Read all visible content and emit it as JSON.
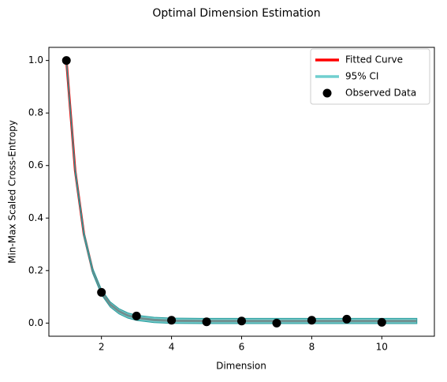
{
  "chart_data": {
    "type": "line",
    "title": "Optimal Dimension Estimation",
    "x_label": "Dimension",
    "y_label": "Min-Max Scaled Cross-Entropy",
    "xlim": [
      0.5,
      11.5
    ],
    "ylim": [
      -0.05,
      1.05
    ],
    "xticks": [
      2,
      4,
      6,
      8,
      10
    ],
    "yticks": [
      {
        "value": 0,
        "label": "0.0"
      },
      0.2,
      0.4,
      0.6,
      0.8,
      {
        "value": 1,
        "label": "1.0"
      }
    ],
    "legend": "upper right",
    "series": [
      {
        "name": "Fitted Curve",
        "color": "#ff0000",
        "x": [
          1,
          1.25,
          1.5,
          1.75,
          2,
          2.25,
          2.5,
          2.75,
          3,
          3.5,
          4,
          5,
          6,
          7,
          8,
          9,
          10,
          11
        ],
        "values": [
          1.0,
          0.58,
          0.338,
          0.199,
          0.118,
          0.071,
          0.045,
          0.029,
          0.02,
          0.012,
          0.009,
          0.008,
          0.008,
          0.008,
          0.008,
          0.008,
          0.008,
          0.008
        ]
      },
      {
        "name": "95% CI",
        "color": "#40bfbf",
        "x": [
          1,
          1.25,
          1.5,
          1.75,
          2,
          2.25,
          2.5,
          2.75,
          3,
          3.5,
          4,
          5,
          6,
          7,
          8,
          9,
          10,
          11
        ],
        "lower": [
          0.99,
          0.57,
          0.328,
          0.189,
          0.108,
          0.061,
          0.035,
          0.019,
          0.01,
          0.002,
          -0.001,
          -0.002,
          -0.002,
          -0.002,
          -0.002,
          -0.002,
          -0.002,
          -0.002
        ],
        "upper": [
          1.01,
          0.59,
          0.348,
          0.209,
          0.128,
          0.081,
          0.055,
          0.039,
          0.03,
          0.022,
          0.019,
          0.018,
          0.018,
          0.018,
          0.018,
          0.018,
          0.018,
          0.018
        ]
      },
      {
        "name": "Observed Data",
        "color": "#000000",
        "x": [
          1,
          2,
          3,
          4,
          5,
          6,
          7,
          8,
          9,
          10
        ],
        "values": [
          1.0,
          0.117,
          0.027,
          0.011,
          0.005,
          0.008,
          0.0,
          0.011,
          0.015,
          0.003
        ]
      }
    ]
  }
}
